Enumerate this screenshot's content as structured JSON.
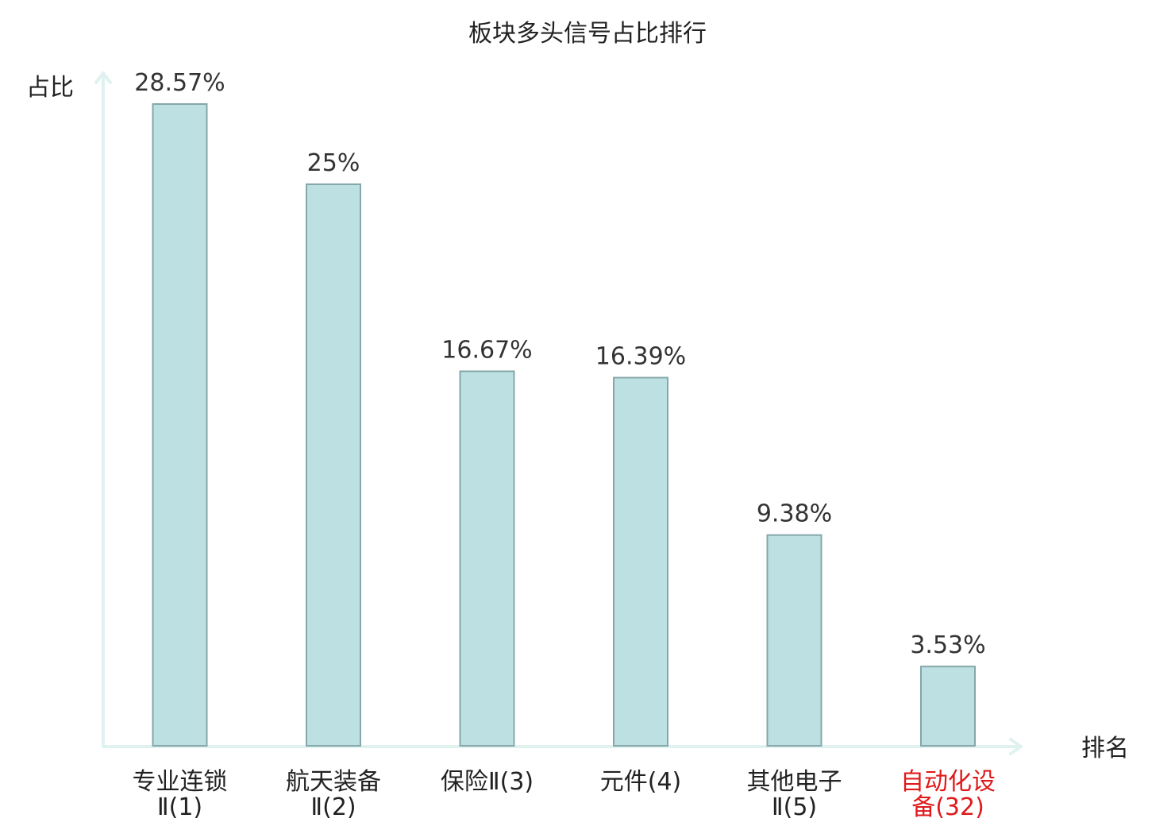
{
  "chart_data": {
    "type": "bar",
    "title": "板块多头信号占比排行",
    "ylabel": "占比",
    "xlabel": "排名",
    "ylim": [
      0,
      30
    ],
    "categories": [
      {
        "line1": "专业连锁",
        "line2": "Ⅱ(1)",
        "highlight": false
      },
      {
        "line1": "航天装备",
        "line2": "Ⅱ(2)",
        "highlight": false
      },
      {
        "line1": "保险Ⅱ(3)",
        "line2": "",
        "highlight": false
      },
      {
        "line1": "元件(4)",
        "line2": "",
        "highlight": false
      },
      {
        "line1": "其他电子",
        "line2": "Ⅱ(5)",
        "highlight": false
      },
      {
        "line1": "自动化设",
        "line2": "备(32)",
        "highlight": true
      }
    ],
    "values": [
      28.57,
      25,
      16.67,
      16.39,
      9.38,
      3.53
    ],
    "value_labels": [
      "28.57%",
      "25%",
      "16.67%",
      "16.39%",
      "9.38%",
      "3.53%"
    ],
    "grid": false,
    "colors": {
      "bar_fill": "#bde0e3",
      "bar_stroke": "#86a7aa",
      "axis": "#e0f2f0",
      "highlight_label": "#e0191b"
    }
  }
}
